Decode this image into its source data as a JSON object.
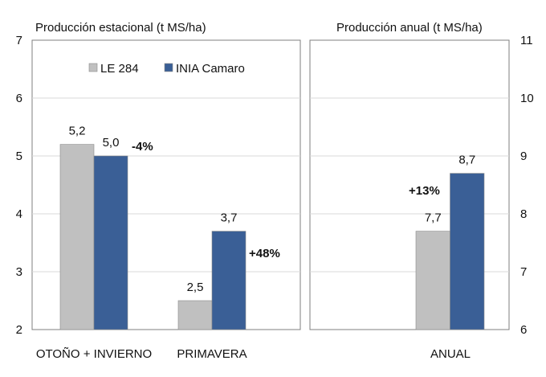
{
  "chart_data": [
    {
      "type": "bar",
      "title": "Producción estacional  (t MS/ha)",
      "categories": [
        "OTOÑO + INVIERNO",
        "PRIMAVERA"
      ],
      "series": [
        {
          "name": "LE 284",
          "values": [
            5.2,
            2.5
          ],
          "labels": [
            "5,2",
            "2,5"
          ],
          "color": "#c0c0c0"
        },
        {
          "name": "INIA Camaro",
          "values": [
            5.0,
            3.7
          ],
          "labels": [
            "5,0",
            "3,7"
          ],
          "color": "#3a5f96"
        }
      ],
      "annotations": [
        "-4%",
        "+48%"
      ],
      "ylim": [
        2,
        7
      ],
      "yticks": [
        "2",
        "3",
        "4",
        "5",
        "6",
        "7"
      ],
      "grid": true,
      "legend": "top-center"
    },
    {
      "type": "bar",
      "title": "Producción anual  (t MS/ha)",
      "categories": [
        "ANUAL"
      ],
      "series": [
        {
          "name": "LE 284",
          "values": [
            7.7
          ],
          "labels": [
            "7,7"
          ],
          "color": "#c0c0c0"
        },
        {
          "name": "INIA Camaro",
          "values": [
            8.7
          ],
          "labels": [
            "8,7"
          ],
          "color": "#3a5f96"
        }
      ],
      "annotations": [
        "+13%"
      ],
      "ylim": [
        6,
        11
      ],
      "yticks": [
        "6",
        "7",
        "8",
        "9",
        "10",
        "11"
      ],
      "grid": true
    }
  ]
}
